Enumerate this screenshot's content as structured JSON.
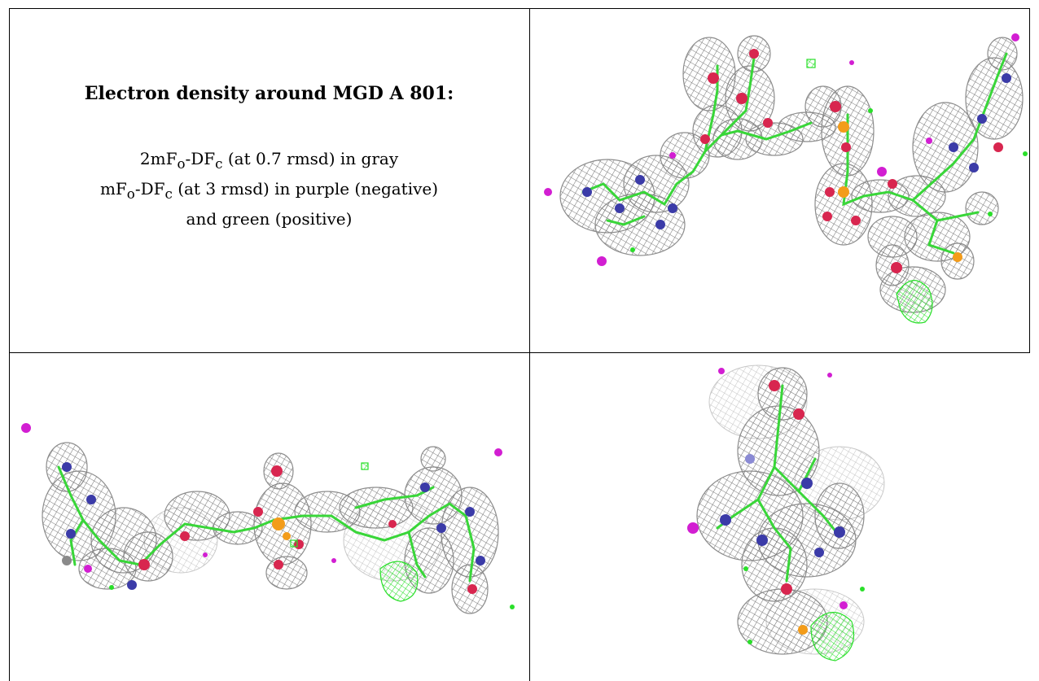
{
  "caption": {
    "title": "Electron density around MGD A 801:",
    "line1": {
      "a": "2mF",
      "a_sub": "o",
      "b": "-DF",
      "b_sub": "c",
      "c": " (at 0.7 rmsd) in gray"
    },
    "line2": {
      "a": "mF",
      "a_sub": "o",
      "b": "-DF",
      "b_sub": "c",
      "c": " (at 3 rmsd) in purple (negative)"
    },
    "line3": "and green (positive)"
  },
  "colors": {
    "mesh_gray": "#8c8c8c",
    "mesh_light_gray": "#c8c8c8",
    "negative_purple": "#d21ed2",
    "positive_green": "#2adf2a",
    "carbon_green": "#39d639",
    "oxygen_red": "#d8264f",
    "nitrogen_blue": "#3b3ba8",
    "phosphorus_orange": "#f39c1a"
  },
  "panels": [
    {
      "id": "view-1",
      "icon": "molecule-density-view"
    },
    {
      "id": "view-2",
      "icon": "molecule-density-view"
    },
    {
      "id": "view-3",
      "icon": "molecule-density-view"
    }
  ]
}
